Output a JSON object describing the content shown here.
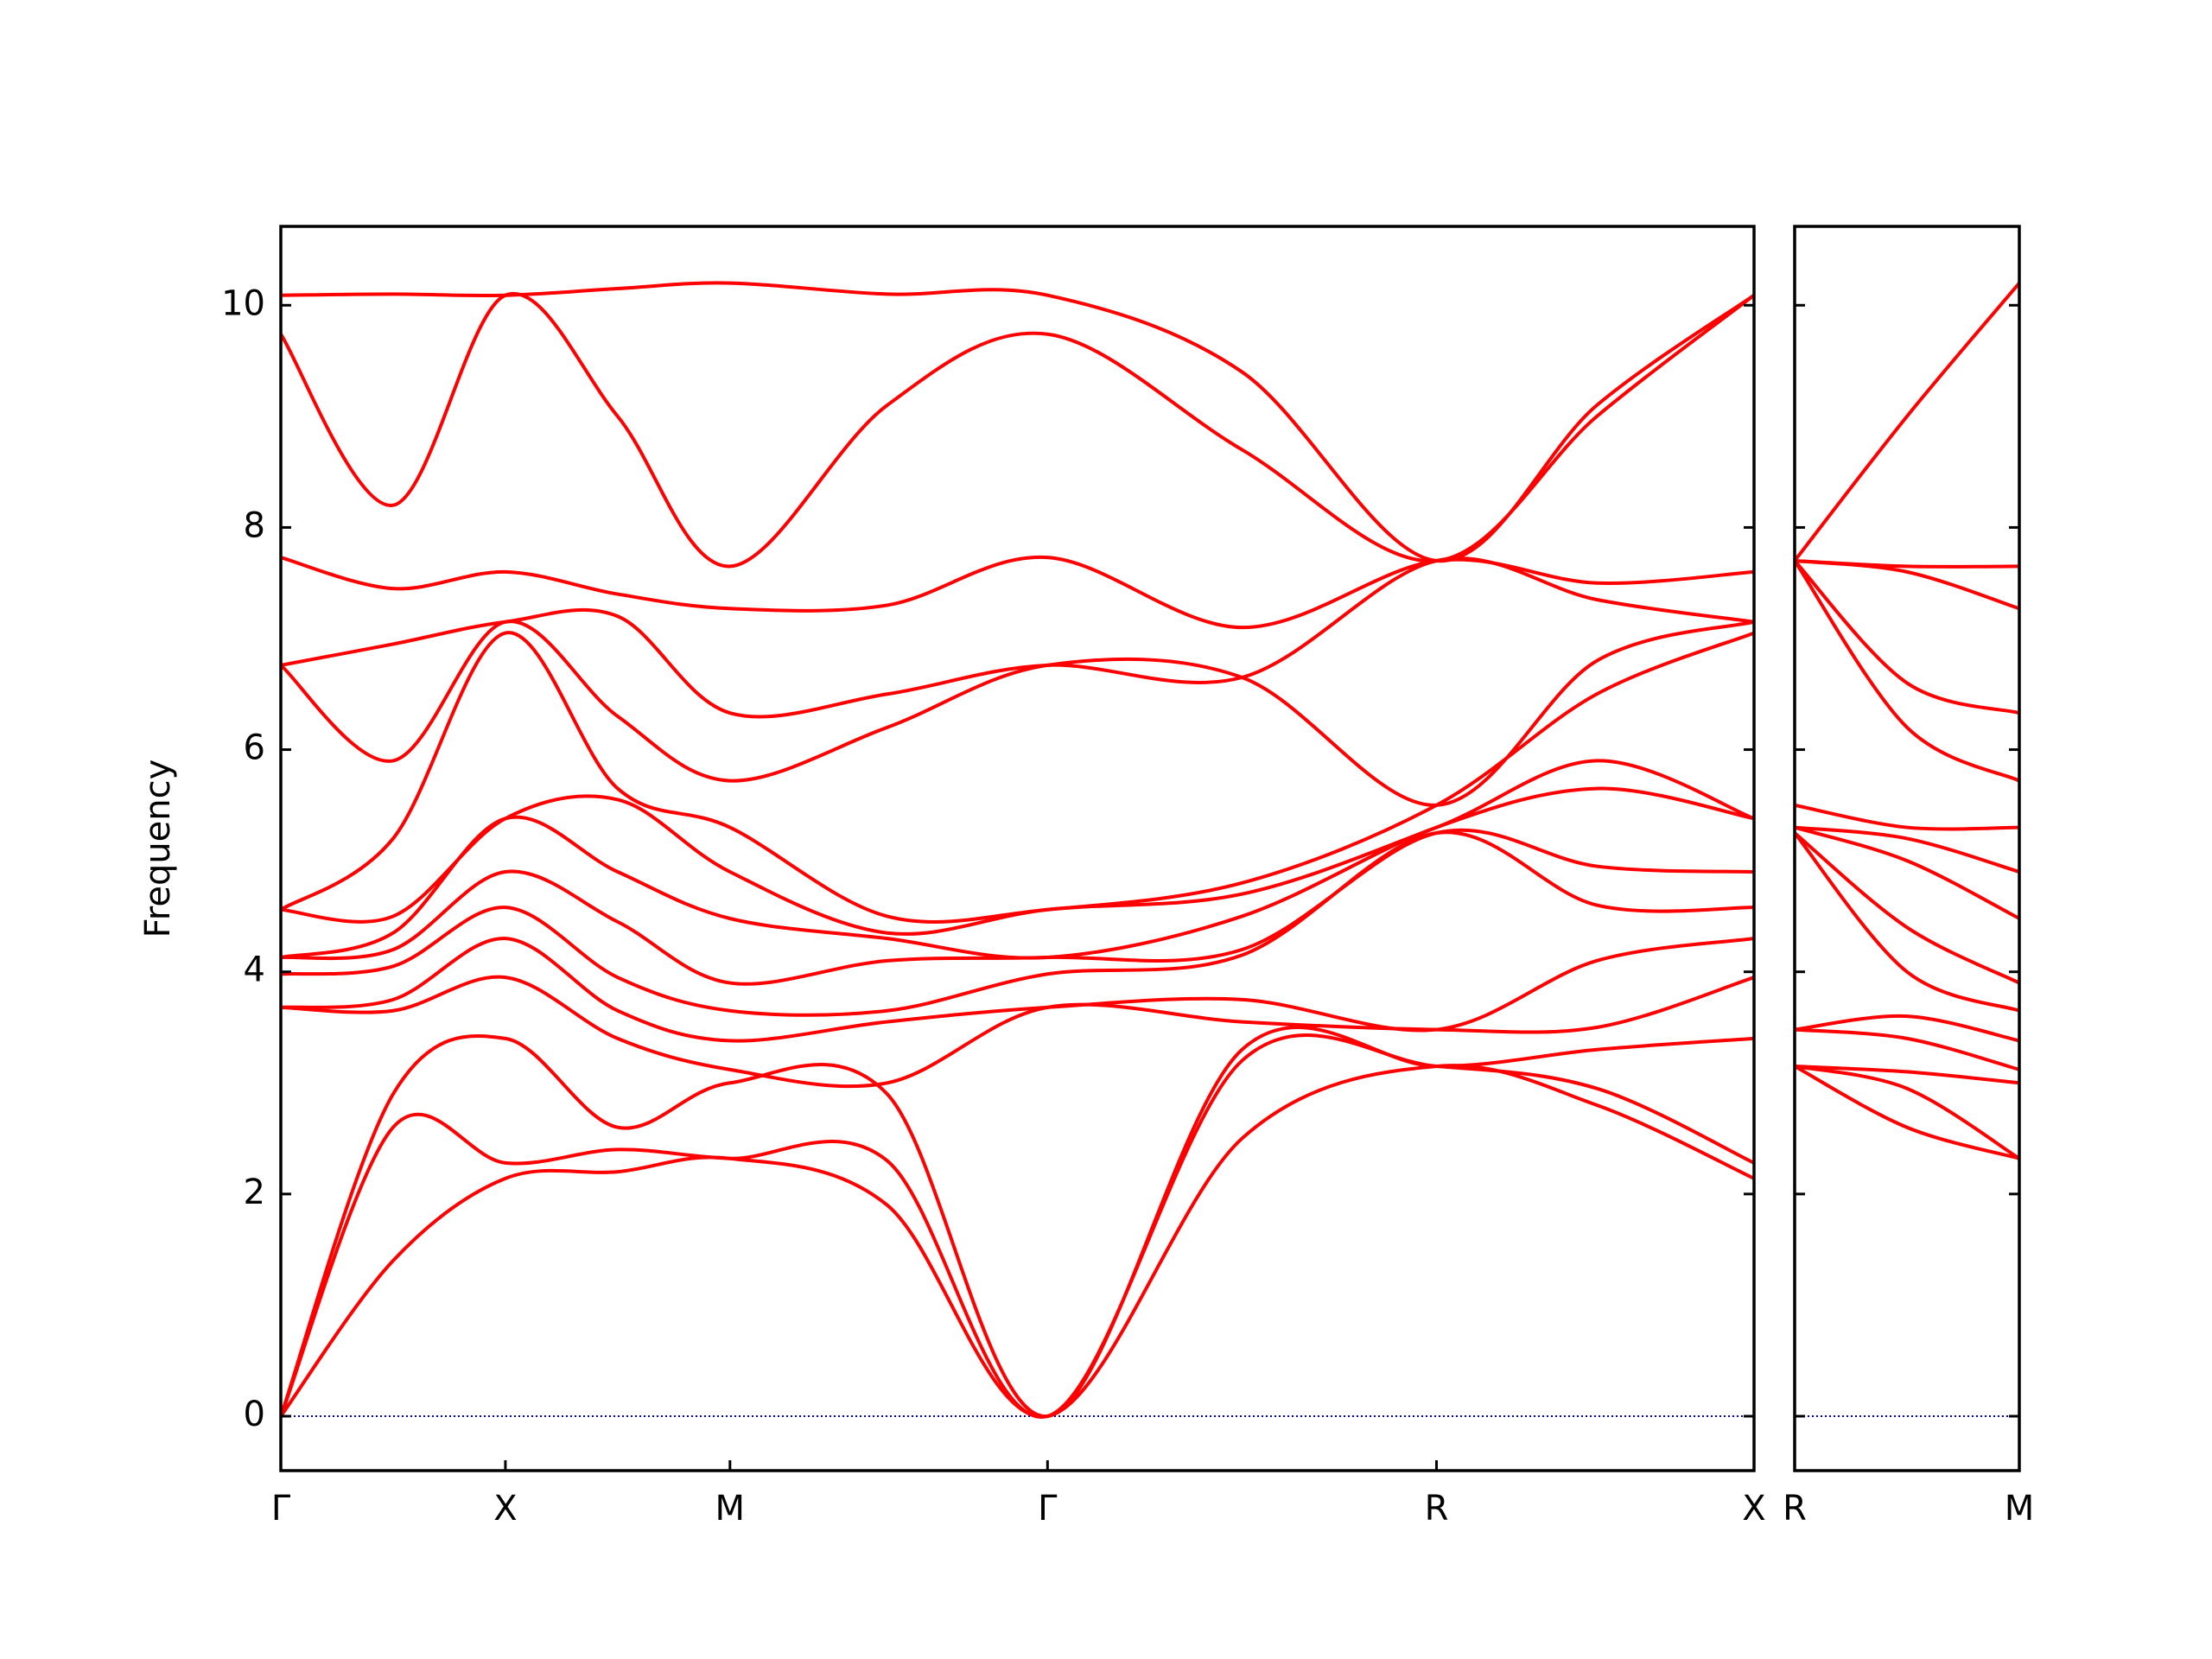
{
  "chart_data": [
    {
      "type": "line",
      "ylabel": "Frequency",
      "color": "#ff0000",
      "line_width": 4,
      "x": [
        0,
        0.25,
        0.5,
        0.75,
        1.0,
        1.35,
        1.707,
        2.14,
        2.573,
        2.93,
        3.28
      ],
      "xlim": [
        0,
        3.28
      ],
      "xticks": [
        {
          "value": 0,
          "label": "Γ"
        },
        {
          "value": 0.5,
          "label": "X"
        },
        {
          "value": 1.0,
          "label": "M"
        },
        {
          "value": 1.707,
          "label": "Γ"
        },
        {
          "value": 2.573,
          "label": "R"
        },
        {
          "value": 3.28,
          "label": "X"
        }
      ],
      "ylim": [
        -0.49,
        10.71
      ],
      "yticks": [
        0,
        2,
        4,
        6,
        8,
        10
      ],
      "ytick_labels": true,
      "hlines": [
        {
          "y": 0,
          "color": "#0000cc",
          "dash": "dotted"
        }
      ],
      "series": [
        {
          "values": [
            0,
            1.4,
            2.14,
            2.2,
            2.32,
            1.9,
            0,
            2.5,
            3.15,
            2.8,
            2.14
          ]
        },
        {
          "values": [
            0,
            2.6,
            2.28,
            2.4,
            2.32,
            2.3,
            0,
            3.2,
            3.15,
            2.95,
            2.28
          ]
        },
        {
          "values": [
            0,
            2.9,
            3.4,
            2.6,
            3.0,
            2.9,
            0,
            3.3,
            3.15,
            3.3,
            3.4
          ]
        },
        {
          "values": [
            3.68,
            3.65,
            3.95,
            3.4,
            3.12,
            3.0,
            3.68,
            3.55,
            3.48,
            3.5,
            3.95
          ]
        },
        {
          "values": [
            3.68,
            3.75,
            4.3,
            3.65,
            3.38,
            3.55,
            3.68,
            3.75,
            3.48,
            4.1,
            4.3
          ]
        },
        {
          "values": [
            3.98,
            4.05,
            4.58,
            3.95,
            3.65,
            3.65,
            3.98,
            4.15,
            5.25,
            4.6,
            4.58
          ]
        },
        {
          "values": [
            4.13,
            4.2,
            4.9,
            4.45,
            3.9,
            4.1,
            4.13,
            4.2,
            5.25,
            4.95,
            4.9
          ]
        },
        {
          "values": [
            4.13,
            4.35,
            5.38,
            4.9,
            4.48,
            4.3,
            4.13,
            4.5,
            5.3,
            5.65,
            5.38
          ]
        },
        {
          "values": [
            4.56,
            4.5,
            5.38,
            5.55,
            4.9,
            4.35,
            4.56,
            4.7,
            5.3,
            5.9,
            5.38
          ]
        },
        {
          "values": [
            4.56,
            5.2,
            7.05,
            5.65,
            5.3,
            4.5,
            4.56,
            4.8,
            5.5,
            6.5,
            7.05
          ]
        },
        {
          "values": [
            6.76,
            5.9,
            7.15,
            6.3,
            5.72,
            6.2,
            6.76,
            6.65,
            5.5,
            6.8,
            7.15
          ]
        },
        {
          "values": [
            6.76,
            6.95,
            7.15,
            7.2,
            6.33,
            6.5,
            6.76,
            6.65,
            7.7,
            7.35,
            7.15
          ]
        },
        {
          "values": [
            7.73,
            7.45,
            7.6,
            7.4,
            7.27,
            7.3,
            7.73,
            7.1,
            7.7,
            7.5,
            7.6
          ]
        },
        {
          "values": [
            9.74,
            8.2,
            10.09,
            9.0,
            7.65,
            9.1,
            9.74,
            8.7,
            7.7,
            9.0,
            10.09
          ]
        },
        {
          "values": [
            10.09,
            10.1,
            10.09,
            10.15,
            10.2,
            10.1,
            10.09,
            9.4,
            7.7,
            9.1,
            10.09
          ]
        }
      ]
    },
    {
      "type": "line",
      "color": "#ff0000",
      "line_width": 4,
      "x": [
        0,
        0.25,
        0.5
      ],
      "xlim": [
        0,
        0.5
      ],
      "xticks": [
        {
          "value": 0,
          "label": "R"
        },
        {
          "value": 0.5,
          "label": "M"
        }
      ],
      "ylim": [
        -0.49,
        10.71
      ],
      "yticks": [
        0,
        2,
        4,
        6,
        8,
        10
      ],
      "ytick_labels": false,
      "hlines": [
        {
          "y": 0,
          "color": "#0000cc",
          "dash": "dotted"
        }
      ],
      "series": [
        {
          "values": [
            3.15,
            2.6,
            2.32
          ]
        },
        {
          "values": [
            3.15,
            2.95,
            2.32
          ]
        },
        {
          "values": [
            3.15,
            3.1,
            3.0
          ]
        },
        {
          "values": [
            3.48,
            3.4,
            3.12
          ]
        },
        {
          "values": [
            3.48,
            3.6,
            3.38
          ]
        },
        {
          "values": [
            5.25,
            4.0,
            3.65
          ]
        },
        {
          "values": [
            5.25,
            4.4,
            3.9
          ]
        },
        {
          "values": [
            5.3,
            5.0,
            4.48
          ]
        },
        {
          "values": [
            5.3,
            5.2,
            4.9
          ]
        },
        {
          "values": [
            5.5,
            5.3,
            5.3
          ]
        },
        {
          "values": [
            7.7,
            6.2,
            5.72
          ]
        },
        {
          "values": [
            7.7,
            6.6,
            6.33
          ]
        },
        {
          "values": [
            7.7,
            7.6,
            7.27
          ]
        },
        {
          "values": [
            7.7,
            7.65,
            7.65
          ]
        },
        {
          "values": [
            7.7,
            9.0,
            10.2
          ]
        }
      ]
    }
  ]
}
